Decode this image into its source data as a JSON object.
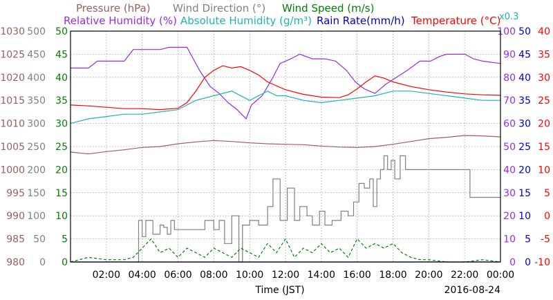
{
  "header": {
    "line1": [
      {
        "text": "Pressure (hPa)",
        "color": "#9b5f5f"
      },
      {
        "text": "Wind Direction (°)",
        "color": "#808080"
      },
      {
        "text": "Wind Speed (m/s)",
        "color": "#008000"
      }
    ],
    "line2": [
      {
        "text": "Relative Humidity (%)",
        "color": "#9a2be0"
      },
      {
        "text": "Absolute Humidity (g/m³)",
        "color": "#1fb3b3"
      },
      {
        "text": "Rain Rate(mm/h)",
        "color": "#0000cc"
      },
      {
        "text": "Temperature (°C)",
        "color": "#ff0000"
      }
    ],
    "note": {
      "text": "x0.3",
      "color": "#1fb3b3"
    }
  },
  "footer": {
    "xlabel": "Time (JST)",
    "date": "2016-08-24"
  },
  "chart_data": {
    "type": "line",
    "grid": true,
    "xlim": [
      0,
      24
    ],
    "x_ticks": [
      "02:00",
      "04:00",
      "06:00",
      "08:00",
      "10:00",
      "12:00",
      "14:00",
      "16:00",
      "18:00",
      "20:00",
      "22:00",
      "00:00"
    ],
    "left_axes": [
      {
        "name": "Pressure (hPa)",
        "color": "#9b5f5f",
        "ticks": [
          "980",
          "985",
          "990",
          "995",
          "1000",
          "1005",
          "1010",
          "1015",
          "1020",
          "1025",
          "1030"
        ]
      },
      {
        "name": "Wind Direction (°)",
        "color": "#808080",
        "ticks": [
          "0",
          "50",
          "100",
          "150",
          "200",
          "250",
          "300",
          "350",
          "400",
          "450",
          "500"
        ]
      },
      {
        "name": "Wind Speed (m/s)",
        "color": "#008000",
        "ticks": [
          "0",
          "5",
          "10",
          "15",
          "20",
          "25",
          "30",
          "35",
          "40",
          "45",
          "50"
        ]
      }
    ],
    "right_axes": [
      {
        "name": "Relative Humidity (%)",
        "color": "#9a2be0",
        "ticks": [
          "0",
          "10",
          "20",
          "30",
          "40",
          "50",
          "60",
          "70",
          "80",
          "90",
          "100"
        ]
      },
      {
        "name": "Rain Rate (mm/h)",
        "color": "#0000cc",
        "ticks": [
          "0",
          "5",
          "10",
          "15",
          "20",
          "25",
          "30",
          "35",
          "40",
          "45",
          "50"
        ]
      },
      {
        "name": "Temperature (°C)",
        "color": "#ff0000",
        "ticks": [
          "-10",
          "-5",
          "0",
          "5",
          "10",
          "15",
          "20",
          "25",
          "30",
          "35",
          "40"
        ]
      }
    ],
    "series": [
      {
        "name": "Relative Humidity (%)",
        "color": "#9a2be0",
        "axis": "Relative Humidity (%)",
        "dashed": false,
        "points": [
          [
            0,
            84
          ],
          [
            1,
            84
          ],
          [
            1.5,
            87
          ],
          [
            3,
            87
          ],
          [
            3.5,
            92
          ],
          [
            5,
            92
          ],
          [
            5.5,
            93
          ],
          [
            6.5,
            93
          ],
          [
            7.2,
            83
          ],
          [
            7.8,
            76
          ],
          [
            8.3,
            73
          ],
          [
            8.8,
            69
          ],
          [
            9.3,
            66
          ],
          [
            9.8,
            62
          ],
          [
            10.1,
            68
          ],
          [
            10.7,
            72
          ],
          [
            11.3,
            80
          ],
          [
            11.7,
            86
          ],
          [
            12.3,
            88
          ],
          [
            12.8,
            90
          ],
          [
            13.5,
            88
          ],
          [
            14.2,
            88
          ],
          [
            14.8,
            87
          ],
          [
            15.4,
            83
          ],
          [
            15.9,
            78
          ],
          [
            16.4,
            75
          ],
          [
            17,
            73
          ],
          [
            17.6,
            77
          ],
          [
            18.2,
            80
          ],
          [
            18.8,
            83
          ],
          [
            19.5,
            87
          ],
          [
            20.1,
            87
          ],
          [
            20.6,
            89
          ],
          [
            21,
            90
          ],
          [
            22,
            90
          ],
          [
            22.5,
            88
          ],
          [
            23,
            87
          ],
          [
            24,
            86
          ]
        ]
      },
      {
        "name": "Absolute Humidity (g/m³)",
        "color": "#1fb3b3",
        "axis": "Wind Speed (m/s)",
        "dashed": false,
        "points": [
          [
            0,
            30
          ],
          [
            1,
            31
          ],
          [
            2,
            31.5
          ],
          [
            3,
            32
          ],
          [
            4,
            32
          ],
          [
            5,
            32.5
          ],
          [
            6,
            33
          ],
          [
            7,
            35
          ],
          [
            8,
            36
          ],
          [
            9,
            37
          ],
          [
            10,
            35
          ],
          [
            11,
            37
          ],
          [
            11.5,
            36
          ],
          [
            12,
            36
          ],
          [
            13,
            35
          ],
          [
            14,
            34.5
          ],
          [
            15,
            35
          ],
          [
            16,
            35.5
          ],
          [
            17,
            36
          ],
          [
            18,
            37
          ],
          [
            19,
            37
          ],
          [
            20,
            36.5
          ],
          [
            21,
            36
          ],
          [
            22,
            35.5
          ],
          [
            23,
            35
          ],
          [
            24,
            35
          ]
        ]
      },
      {
        "name": "Temperature (°C)",
        "color": "#ff0000",
        "axis": "Temperature (°C)",
        "dashed": false,
        "points": [
          [
            0,
            24
          ],
          [
            1,
            23.8
          ],
          [
            2,
            23.5
          ],
          [
            3,
            23.2
          ],
          [
            4,
            23.2
          ],
          [
            5,
            23
          ],
          [
            6,
            23.3
          ],
          [
            6.5,
            24.5
          ],
          [
            7,
            27
          ],
          [
            7.5,
            30
          ],
          [
            8,
            31.5
          ],
          [
            8.5,
            32.5
          ],
          [
            9,
            32
          ],
          [
            9.5,
            32.3
          ],
          [
            10,
            31.5
          ],
          [
            10.5,
            30.5
          ],
          [
            11,
            29
          ],
          [
            12,
            27.3
          ],
          [
            13,
            26.3
          ],
          [
            14,
            25.7
          ],
          [
            15,
            25.6
          ],
          [
            15.5,
            26.2
          ],
          [
            16,
            27.5
          ],
          [
            16.5,
            29
          ],
          [
            17,
            30.3
          ],
          [
            17.5,
            29.8
          ],
          [
            18,
            29
          ],
          [
            19,
            28
          ],
          [
            20,
            27.3
          ],
          [
            21,
            26.8
          ],
          [
            22,
            26.4
          ],
          [
            23,
            26.2
          ],
          [
            24,
            26.1
          ]
        ]
      },
      {
        "name": "Pressure (hPa)",
        "color": "#9b5f5f",
        "axis": "Pressure (hPa)",
        "dashed": false,
        "points": [
          [
            0,
            1003.8
          ],
          [
            1,
            1003.4
          ],
          [
            2,
            1003.9
          ],
          [
            3,
            1004.3
          ],
          [
            4,
            1004.8
          ],
          [
            5,
            1005
          ],
          [
            6,
            1005.6
          ],
          [
            7,
            1006
          ],
          [
            8,
            1006.3
          ],
          [
            9,
            1006.1
          ],
          [
            10,
            1005.8
          ],
          [
            11,
            1005.6
          ],
          [
            12,
            1005.5
          ],
          [
            13,
            1005.4
          ],
          [
            14,
            1005.1
          ],
          [
            15,
            1004.9
          ],
          [
            16,
            1004.8
          ],
          [
            17,
            1005
          ],
          [
            18,
            1005.5
          ],
          [
            19,
            1006.1
          ],
          [
            20,
            1006.7
          ],
          [
            21,
            1007
          ],
          [
            22,
            1007.4
          ],
          [
            23,
            1007.3
          ],
          [
            24,
            1007.1
          ]
        ]
      },
      {
        "name": "Wind Direction (°)",
        "color": "#808080",
        "axis": "Wind Direction (°)",
        "dashed": false,
        "step": true,
        "points": [
          [
            3.7,
            0
          ],
          [
            3.8,
            90
          ],
          [
            4,
            55
          ],
          [
            4.2,
            90
          ],
          [
            4.6,
            60
          ],
          [
            5,
            80
          ],
          [
            5.2,
            75
          ],
          [
            5.4,
            60
          ],
          [
            5.6,
            90
          ],
          [
            5.8,
            70
          ],
          [
            6.5,
            70
          ],
          [
            7,
            70
          ],
          [
            7.5,
            90
          ],
          [
            8,
            70
          ],
          [
            8.3,
            90
          ],
          [
            8.6,
            40
          ],
          [
            9,
            100
          ],
          [
            9.4,
            0
          ],
          [
            9.6,
            80
          ],
          [
            10,
            90
          ],
          [
            10.5,
            80
          ],
          [
            11,
            120
          ],
          [
            11.3,
            180
          ],
          [
            11.7,
            90
          ],
          [
            12.1,
            160
          ],
          [
            12.5,
            90
          ],
          [
            12.8,
            120
          ],
          [
            13.2,
            100
          ],
          [
            13.5,
            80
          ],
          [
            13.9,
            110
          ],
          [
            14.2,
            80
          ],
          [
            14.6,
            90
          ],
          [
            15.1,
            110
          ],
          [
            15.5,
            100
          ],
          [
            15.8,
            130
          ],
          [
            16.1,
            170
          ],
          [
            16.4,
            160
          ],
          [
            16.7,
            180
          ],
          [
            16.9,
            120
          ],
          [
            17.1,
            180
          ],
          [
            17.3,
            200
          ],
          [
            17.5,
            230
          ],
          [
            17.7,
            200
          ],
          [
            17.9,
            220
          ],
          [
            18.1,
            180
          ],
          [
            18.4,
            230
          ],
          [
            18.7,
            200
          ],
          [
            19,
            200
          ],
          [
            20,
            200
          ],
          [
            21,
            200
          ],
          [
            22,
            200
          ],
          [
            22.3,
            140
          ],
          [
            23,
            140
          ],
          [
            24,
            140
          ]
        ]
      },
      {
        "name": "Wind Speed (m/s)",
        "color": "#008000",
        "axis": "Wind Speed (m/s)",
        "dashed": true,
        "points": [
          [
            0,
            0
          ],
          [
            1,
            1
          ],
          [
            2,
            0.5
          ],
          [
            3,
            0.5
          ],
          [
            3.5,
            1
          ],
          [
            4,
            3
          ],
          [
            4.5,
            5
          ],
          [
            5,
            2
          ],
          [
            5.5,
            3
          ],
          [
            6,
            1
          ],
          [
            6.5,
            3
          ],
          [
            7,
            2
          ],
          [
            7.5,
            1
          ],
          [
            8,
            3
          ],
          [
            8.5,
            2
          ],
          [
            9,
            1
          ],
          [
            9.5,
            3
          ],
          [
            10,
            2
          ],
          [
            10.5,
            1
          ],
          [
            11,
            4
          ],
          [
            11.5,
            2
          ],
          [
            12,
            5
          ],
          [
            12.5,
            1
          ],
          [
            13,
            3
          ],
          [
            13.5,
            2
          ],
          [
            14,
            4
          ],
          [
            14.5,
            2
          ],
          [
            15,
            3
          ],
          [
            15.5,
            1
          ],
          [
            16,
            5
          ],
          [
            16.5,
            3
          ],
          [
            17,
            4
          ],
          [
            17.5,
            3
          ],
          [
            18,
            4
          ],
          [
            18.5,
            2
          ],
          [
            19,
            1
          ],
          [
            19.5,
            0.5
          ],
          [
            20,
            0.5
          ],
          [
            21,
            0
          ],
          [
            22,
            0
          ],
          [
            23,
            0.5
          ],
          [
            24,
            0
          ]
        ]
      },
      {
        "name": "Rain Rate (mm/h)",
        "color": "#0000cc",
        "axis": "Rain Rate (mm/h)",
        "dashed": false,
        "points": [
          [
            0,
            0
          ],
          [
            24,
            0
          ]
        ]
      }
    ]
  }
}
